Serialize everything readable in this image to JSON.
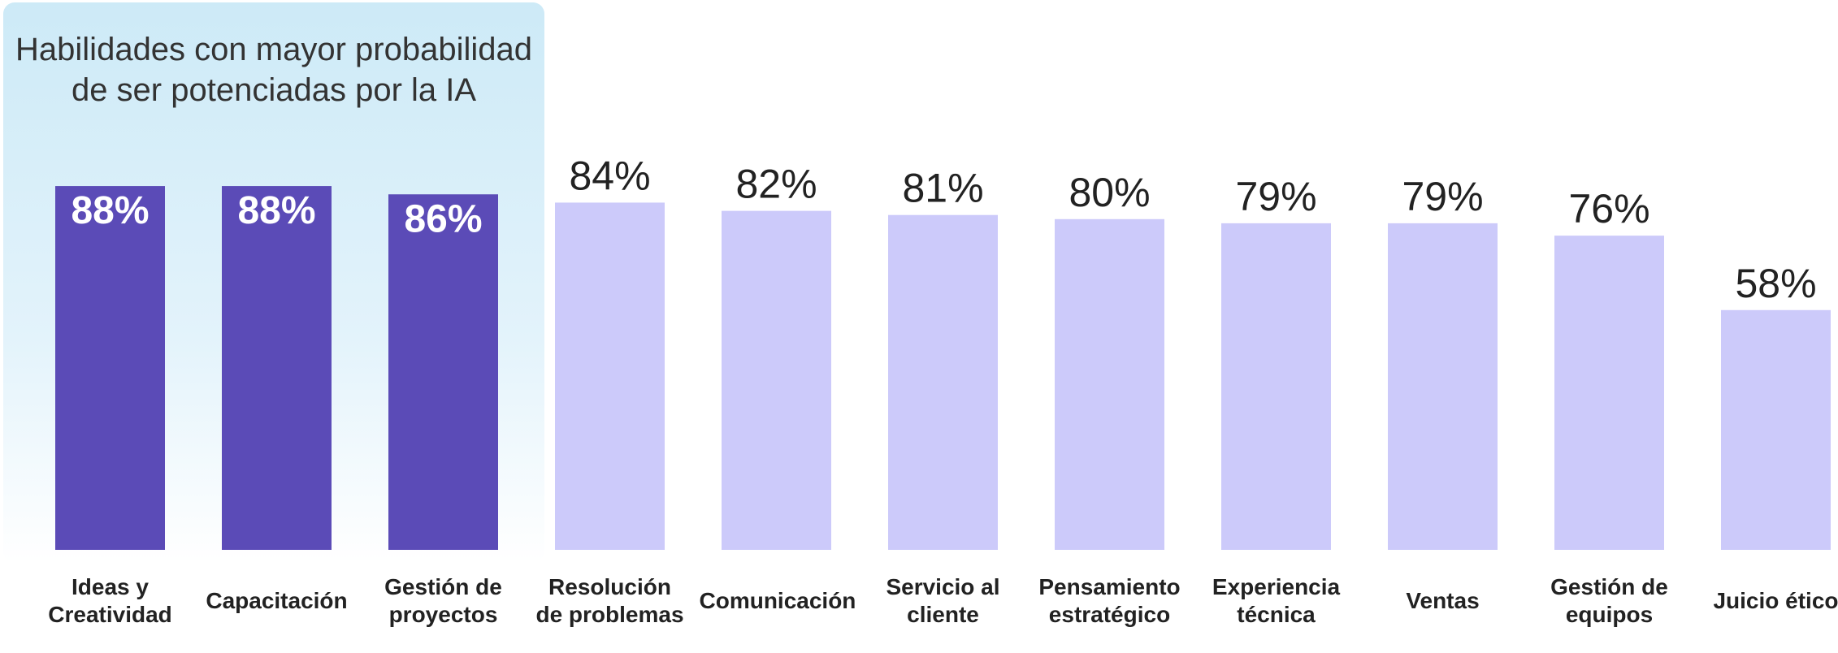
{
  "chart_data": {
    "type": "bar",
    "title": "Habilidades con mayor probabilidad de ser potenciadas por la IA",
    "categories": [
      "Ideas y Creatividad",
      "Capacitación",
      "Gestión de proyectos",
      "Resolución de problemas",
      "Comunicación",
      "Servicio al cliente",
      "Pensamiento estratégico",
      "Experiencia técnica",
      "Ventas",
      "Gestión de equipos",
      "Juicio ético"
    ],
    "values": [
      88,
      88,
      86,
      84,
      82,
      81,
      80,
      79,
      79,
      76,
      58
    ],
    "value_labels": [
      "88%",
      "88%",
      "86%",
      "84%",
      "82%",
      "81%",
      "80%",
      "79%",
      "79%",
      "76%",
      "58%"
    ],
    "colors": [
      "#5b4bb7",
      "#5b4bb7",
      "#5b4bb7",
      "#cccafa",
      "#cccafa",
      "#cccafa",
      "#cccafa",
      "#cccafa",
      "#cccafa",
      "#cccafa",
      "#cccafa"
    ],
    "ylim": [
      0,
      100
    ]
  }
}
